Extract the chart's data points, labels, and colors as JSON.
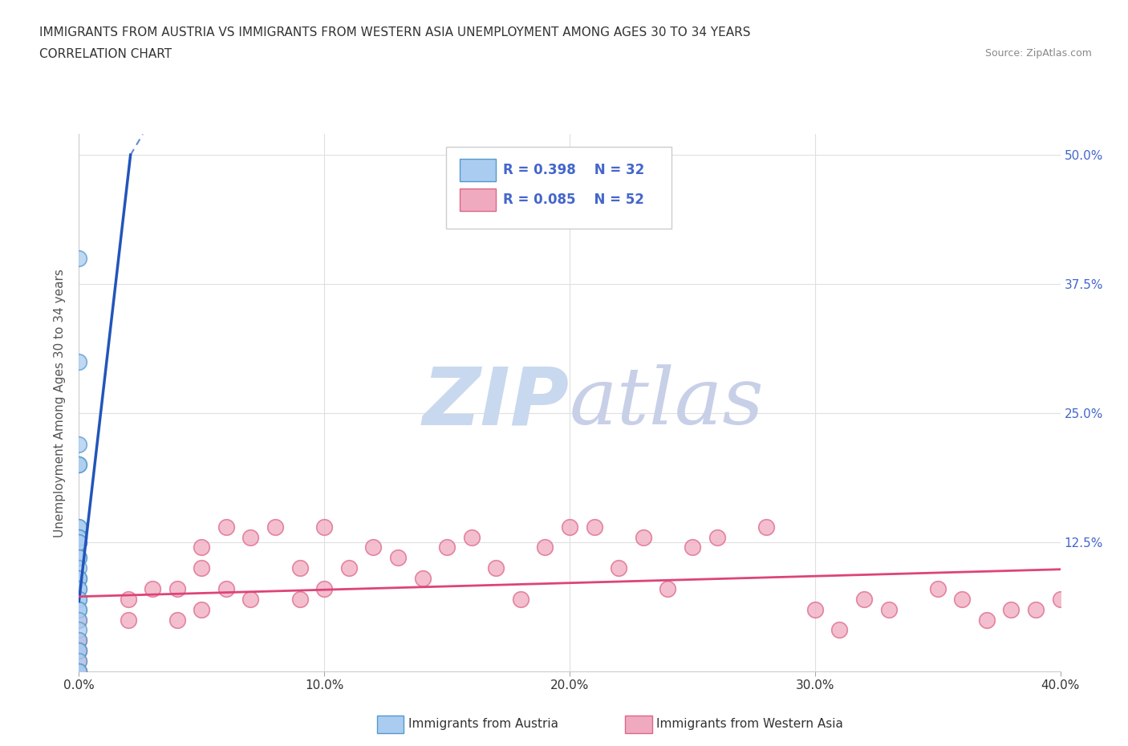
{
  "title_line1": "IMMIGRANTS FROM AUSTRIA VS IMMIGRANTS FROM WESTERN ASIA UNEMPLOYMENT AMONG AGES 30 TO 34 YEARS",
  "title_line2": "CORRELATION CHART",
  "source_text": "Source: ZipAtlas.com",
  "ylabel": "Unemployment Among Ages 30 to 34 years",
  "xlim": [
    0.0,
    0.4
  ],
  "ylim": [
    0.0,
    0.52
  ],
  "xtick_values": [
    0.0,
    0.1,
    0.2,
    0.3,
    0.4
  ],
  "ytick_values": [
    0.0,
    0.125,
    0.25,
    0.375,
    0.5
  ],
  "austria_R": 0.398,
  "austria_N": 32,
  "western_asia_R": 0.085,
  "western_asia_N": 52,
  "austria_color": "#aaccf0",
  "austria_edge": "#5599cc",
  "western_asia_color": "#f0aac0",
  "western_asia_edge": "#dd6688",
  "austria_line_color": "#2255bb",
  "western_asia_line_color": "#dd4477",
  "watermark_zip_color": "#c8d8ee",
  "watermark_atlas_color": "#c8d0e8",
  "background_color": "#ffffff",
  "grid_color": "#e0e0e0",
  "legend_text_color": "#4466cc",
  "austria_x": [
    0.0,
    0.0,
    0.0,
    0.0,
    0.0,
    0.0,
    0.0,
    0.0,
    0.0,
    0.0,
    0.0,
    0.0,
    0.0,
    0.0,
    0.0,
    0.0,
    0.0,
    0.0,
    0.0,
    0.0,
    0.0,
    0.0,
    0.0,
    0.0,
    0.0,
    0.0,
    0.0,
    0.0,
    0.0,
    0.0,
    0.0,
    0.0
  ],
  "austria_y": [
    0.4,
    0.3,
    0.22,
    0.2,
    0.2,
    0.14,
    0.14,
    0.13,
    0.13,
    0.13,
    0.125,
    0.125,
    0.11,
    0.11,
    0.1,
    0.09,
    0.09,
    0.09,
    0.08,
    0.08,
    0.07,
    0.07,
    0.06,
    0.06,
    0.05,
    0.04,
    0.03,
    0.02,
    0.02,
    0.01,
    0.0,
    0.0
  ],
  "western_asia_x": [
    0.0,
    0.0,
    0.0,
    0.0,
    0.0,
    0.0,
    0.0,
    0.0,
    0.02,
    0.02,
    0.03,
    0.04,
    0.04,
    0.05,
    0.05,
    0.05,
    0.06,
    0.06,
    0.07,
    0.07,
    0.08,
    0.09,
    0.09,
    0.1,
    0.1,
    0.11,
    0.12,
    0.13,
    0.14,
    0.15,
    0.16,
    0.17,
    0.18,
    0.19,
    0.2,
    0.21,
    0.22,
    0.23,
    0.24,
    0.25,
    0.26,
    0.28,
    0.3,
    0.31,
    0.32,
    0.33,
    0.35,
    0.36,
    0.37,
    0.38,
    0.39,
    0.4
  ],
  "western_asia_y": [
    0.05,
    0.03,
    0.03,
    0.02,
    0.02,
    0.01,
    0.0,
    0.0,
    0.07,
    0.05,
    0.08,
    0.08,
    0.05,
    0.12,
    0.1,
    0.06,
    0.14,
    0.08,
    0.13,
    0.07,
    0.14,
    0.1,
    0.07,
    0.14,
    0.08,
    0.1,
    0.12,
    0.11,
    0.09,
    0.12,
    0.13,
    0.1,
    0.07,
    0.12,
    0.14,
    0.14,
    0.1,
    0.13,
    0.08,
    0.12,
    0.13,
    0.14,
    0.06,
    0.04,
    0.07,
    0.06,
    0.08,
    0.07,
    0.05,
    0.06,
    0.06,
    0.07
  ]
}
